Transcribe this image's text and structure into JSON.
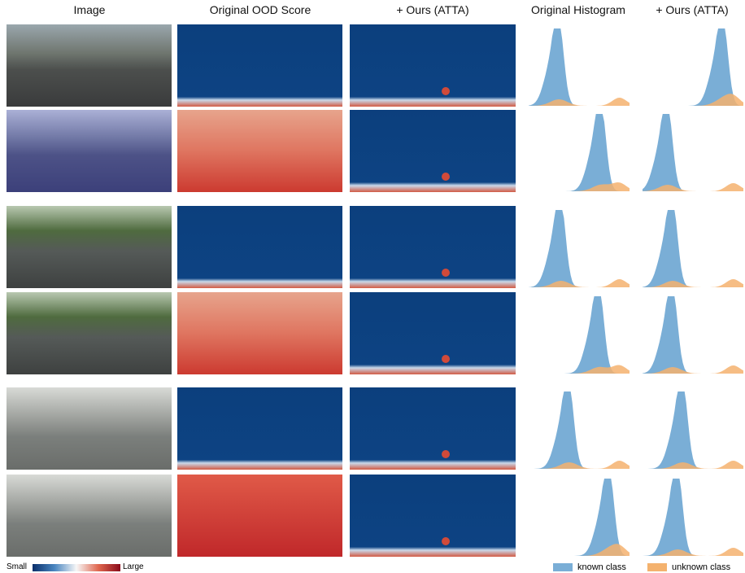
{
  "headers": [
    "Image",
    "Original OOD Score",
    "+ Ours (ATTA)",
    "Original Histogram",
    "+ Ours (ATTA)"
  ],
  "colorbar": {
    "low": "Small",
    "high": "Large"
  },
  "legend": [
    "known class",
    "unknown class"
  ]
}
